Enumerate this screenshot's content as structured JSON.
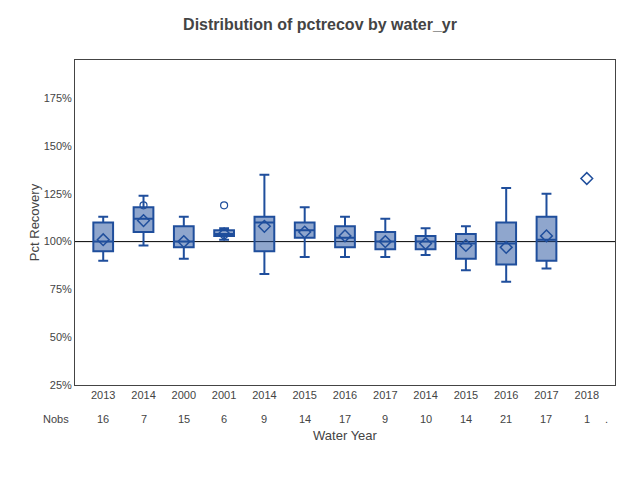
{
  "chart_data": {
    "type": "box",
    "title": "Distribution of pctrecov by water_yr",
    "xlabel": "Water Year",
    "ylabel": "Pct Recovery",
    "categories": [
      "2013",
      "2014",
      "2000",
      "2001",
      "2014",
      "2015",
      "2016",
      "2017",
      "2014",
      "2015",
      "2016",
      "2017",
      "2018"
    ],
    "q1": [
      95,
      105,
      97,
      103,
      95,
      102,
      97,
      96,
      96,
      91,
      88,
      90,
      null
    ],
    "median": [
      100,
      112,
      100,
      104,
      110,
      106,
      102,
      100,
      100,
      99,
      99,
      101,
      null
    ],
    "q3": [
      110,
      118,
      108,
      106,
      113,
      110,
      108,
      105,
      103,
      104,
      110,
      113,
      null
    ],
    "mean": [
      101,
      111,
      100,
      104,
      108,
      105,
      103,
      100,
      99,
      98,
      97,
      103,
      133
    ],
    "whisker_low": [
      90,
      98,
      91,
      101,
      83,
      92,
      92,
      92,
      93,
      85,
      79,
      86,
      null
    ],
    "whisker_high": [
      113,
      124,
      113,
      107,
      135,
      118,
      113,
      112,
      107,
      108,
      128,
      125,
      null
    ],
    "outliers": [
      [],
      [
        119
      ],
      [],
      [
        119
      ],
      [],
      [],
      [],
      [],
      [],
      [],
      [],
      [],
      []
    ],
    "nobs_label": "Nobs",
    "nobs": [
      16,
      7,
      15,
      6,
      9,
      14,
      17,
      9,
      10,
      14,
      21,
      17,
      1
    ],
    "annotations": [
      "."
    ],
    "reference_line": 100,
    "color": "#1f4e9c",
    "ylim": [
      25,
      195
    ],
    "yticks": [
      {
        "value": 25,
        "label": "25%"
      },
      {
        "value": 50,
        "label": "50%"
      },
      {
        "value": 75,
        "label": "75%"
      },
      {
        "value": 100,
        "label": "100%"
      },
      {
        "value": 125,
        "label": "125%"
      },
      {
        "value": 150,
        "label": "150%"
      },
      {
        "value": 175,
        "label": "175%"
      }
    ],
    "grid": false
  }
}
